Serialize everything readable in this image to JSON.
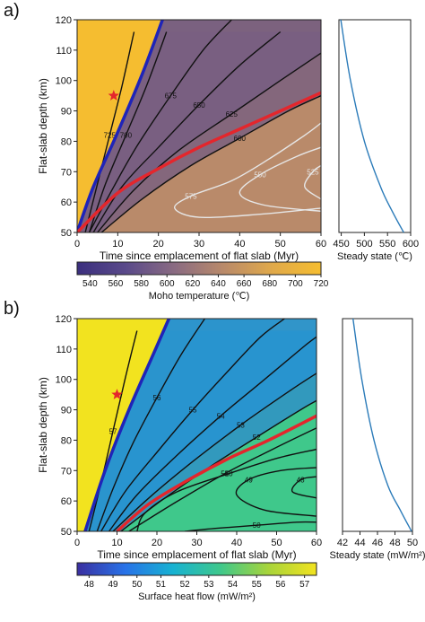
{
  "chart_data": [
    {
      "panel_label": "a)",
      "type": "heatmap",
      "xlabel": "Time since emplacement of flat slab (Myr)",
      "ylabel": "Flat-slab depth (km)",
      "xlim": [
        0,
        60
      ],
      "ylim": [
        50,
        120
      ],
      "xticks": [
        0,
        10,
        20,
        30,
        40,
        50,
        60
      ],
      "yticks": [
        50,
        60,
        70,
        80,
        90,
        100,
        110,
        120
      ],
      "colorbar": {
        "label": "Moho temperature (℃)",
        "range": [
          530,
          720
        ],
        "ticks": [
          540,
          560,
          580,
          600,
          620,
          640,
          660,
          680,
          700,
          720
        ],
        "colormap": [
          "#3b2f7e",
          "#5a4a8a",
          "#8a6b82",
          "#b98a6a",
          "#e0a94a",
          "#f5bd30"
        ]
      },
      "contours": [
        {
          "label": "725",
          "color": "black",
          "points": [
            [
              2,
              50
            ],
            [
              5,
              66
            ],
            [
              8,
              82
            ],
            [
              11,
              98
            ],
            [
              14,
              116
            ]
          ]
        },
        {
          "label": "700",
          "color": "black",
          "points": [
            [
              3,
              50
            ],
            [
              7,
              66
            ],
            [
              12,
              82
            ],
            [
              17,
              98
            ],
            [
              22,
              116
            ]
          ]
        },
        {
          "label": "675",
          "color": "black",
          "points": [
            [
              3,
              50
            ],
            [
              9,
              65
            ],
            [
              15,
              79
            ],
            [
              23,
              95
            ],
            [
              31,
              110
            ],
            [
              38,
              120
            ]
          ]
        },
        {
          "label": "650",
          "color": "black",
          "points": [
            [
              4,
              50
            ],
            [
              11,
              65
            ],
            [
              20,
              78
            ],
            [
              30,
              92
            ],
            [
              40,
              105
            ],
            [
              50,
              116
            ]
          ]
        },
        {
          "label": "625",
          "color": "black",
          "points": [
            [
              5,
              50
            ],
            [
              14,
              64
            ],
            [
              25,
              77
            ],
            [
              38,
              89
            ],
            [
              50,
              100
            ],
            [
              60,
              109
            ]
          ]
        },
        {
          "label": "600",
          "color": "black",
          "points": [
            [
              6,
              50
            ],
            [
              16,
              61
            ],
            [
              28,
              72
            ],
            [
              40,
              81
            ],
            [
              52,
              90
            ],
            [
              60,
              95
            ]
          ]
        },
        {
          "label": "575",
          "color": "white",
          "points": [
            [
              60,
              58
            ],
            [
              45,
              56
            ],
            [
              30,
              55
            ],
            [
              24,
              58
            ],
            [
              28,
              62
            ],
            [
              38,
              67
            ],
            [
              47,
              74
            ],
            [
              56,
              82
            ],
            [
              60,
              86
            ]
          ]
        },
        {
          "label": "550",
          "color": "white",
          "points": [
            [
              60,
              57
            ],
            [
              46,
              59
            ],
            [
              40,
              63
            ],
            [
              45,
              69
            ],
            [
              54,
              75
            ],
            [
              60,
              78
            ]
          ]
        },
        {
          "label": "525",
          "color": "white",
          "points": [
            [
              60,
              61
            ],
            [
              56,
              65
            ],
            [
              58,
              70
            ],
            [
              60,
              72
            ]
          ]
        }
      ],
      "boundary_curves": [
        {
          "color": "#1f24b8",
          "points": [
            [
              0,
              50
            ],
            [
              4,
              65
            ],
            [
              10,
              83
            ],
            [
              16,
              102
            ],
            [
              21,
              120
            ]
          ]
        },
        {
          "color": "#e4262c",
          "points": [
            [
              0,
              50
            ],
            [
              10,
              63
            ],
            [
              20,
              71
            ],
            [
              30,
              78
            ],
            [
              40,
              84
            ],
            [
              50,
              90
            ],
            [
              60,
              96
            ]
          ]
        }
      ],
      "marker": {
        "symbol": "star",
        "color": "#e4262c",
        "x": 9,
        "y": 95
      },
      "side_panel": {
        "xlabel": "Steady state (℃)",
        "xlim": [
          445,
          600
        ],
        "xticks": [
          450,
          500,
          550,
          600
        ],
        "curve": {
          "color": "#2b7bb9",
          "points": [
            [
              449,
              120
            ],
            [
              470,
              100
            ],
            [
              500,
              80
            ],
            [
              535,
              65
            ],
            [
              560,
              57
            ],
            [
              585,
              50
            ]
          ]
        }
      }
    },
    {
      "panel_label": "b)",
      "type": "heatmap",
      "xlabel": "Time since emplacement of flat slab (Myr)",
      "ylabel": "Flat-slab depth (km)",
      "xlim": [
        0,
        60
      ],
      "ylim": [
        50,
        120
      ],
      "xticks": [
        0,
        10,
        20,
        30,
        40,
        50,
        60
      ],
      "yticks": [
        50,
        60,
        70,
        80,
        90,
        100,
        110,
        120
      ],
      "colorbar": {
        "label": "Surface heat flow (mW/m²)",
        "range": [
          47.5,
          57.5
        ],
        "ticks": [
          48,
          49,
          50,
          51,
          52,
          53,
          54,
          55,
          56,
          57
        ],
        "colormap": [
          "#3a2fa0",
          "#2872e8",
          "#17b2d2",
          "#3fc88b",
          "#a8d43a",
          "#f2e31f"
        ]
      },
      "contours": [
        {
          "label": "57",
          "color": "black",
          "points": [
            [
              3,
              50
            ],
            [
              6,
              66
            ],
            [
              9,
              83
            ],
            [
              12,
              100
            ],
            [
              15,
              116
            ]
          ]
        },
        {
          "label": "56",
          "color": "black",
          "points": [
            [
              5,
              50
            ],
            [
              9,
              64
            ],
            [
              14,
              79
            ],
            [
              20,
              94
            ],
            [
              26,
              108
            ],
            [
              32,
              120
            ]
          ]
        },
        {
          "label": "55",
          "color": "black",
          "points": [
            [
              6,
              50
            ],
            [
              12,
              63
            ],
            [
              20,
              76
            ],
            [
              29,
              90
            ],
            [
              38,
              103
            ],
            [
              46,
              114
            ],
            [
              52,
              120
            ]
          ]
        },
        {
          "label": "54",
          "color": "black",
          "points": [
            [
              8,
              50
            ],
            [
              15,
              62
            ],
            [
              25,
              75
            ],
            [
              36,
              88
            ],
            [
              47,
              100
            ],
            [
              57,
              111
            ],
            [
              60,
              114
            ]
          ]
        },
        {
          "label": "53",
          "color": "black",
          "points": [
            [
              9,
              50
            ],
            [
              18,
              61
            ],
            [
              29,
              73
            ],
            [
              41,
              85
            ],
            [
              53,
              96
            ],
            [
              60,
              102
            ]
          ]
        },
        {
          "label": "52",
          "color": "black",
          "points": [
            [
              11,
              50
            ],
            [
              21,
              60
            ],
            [
              33,
              71
            ],
            [
              45,
              81
            ],
            [
              56,
              90
            ],
            [
              60,
              93
            ]
          ]
        },
        {
          "label": "51",
          "color": "black",
          "points": [
            [
              13,
              50
            ],
            [
              24,
              59
            ],
            [
              37,
              69
            ],
            [
              49,
              77
            ],
            [
              60,
              84
            ]
          ]
        },
        {
          "label": "50",
          "color": "black",
          "points": [
            [
              15,
              50
            ],
            [
              17,
              56
            ],
            [
              25,
              63
            ],
            [
              38,
              69
            ],
            [
              50,
              74
            ],
            [
              60,
              77
            ]
          ]
        },
        {
          "label": "49",
          "color": "black",
          "points": [
            [
              60,
              55
            ],
            [
              47,
              57
            ],
            [
              40,
              62
            ],
            [
              43,
              67
            ],
            [
              51,
              70
            ],
            [
              60,
              71
            ]
          ]
        },
        {
          "label": "48",
          "color": "black",
          "points": [
            [
              60,
              61
            ],
            [
              54,
              63
            ],
            [
              56,
              67
            ],
            [
              60,
              68
            ]
          ]
        },
        {
          "label": "50",
          "color": "black",
          "points": [
            [
              27,
              50
            ],
            [
              35,
              51
            ],
            [
              45,
              52
            ],
            [
              55,
              53
            ],
            [
              60,
              53
            ]
          ]
        }
      ],
      "boundary_curves": [
        {
          "color": "#1f24b8",
          "points": [
            [
              2,
              50
            ],
            [
              7,
              70
            ],
            [
              13,
              90
            ],
            [
              19,
              108
            ],
            [
              23,
              120
            ]
          ]
        },
        {
          "color": "#e4262c",
          "points": [
            [
              10,
              50
            ],
            [
              18,
              59
            ],
            [
              28,
              67
            ],
            [
              38,
              74
            ],
            [
              48,
              80
            ],
            [
              60,
              88
            ]
          ]
        }
      ],
      "marker": {
        "symbol": "star",
        "color": "#e4262c",
        "x": 10,
        "y": 95
      },
      "side_panel": {
        "xlabel": "Steady state (mW/m²)",
        "xlim": [
          42,
          50
        ],
        "xticks": [
          42,
          44,
          46,
          48,
          50
        ],
        "curve": {
          "color": "#2b7bb9",
          "points": [
            [
              43.2,
              120
            ],
            [
              44.2,
              100
            ],
            [
              45.6,
              80
            ],
            [
              47.2,
              65
            ],
            [
              48.6,
              57
            ],
            [
              49.9,
              50
            ]
          ]
        }
      }
    }
  ]
}
